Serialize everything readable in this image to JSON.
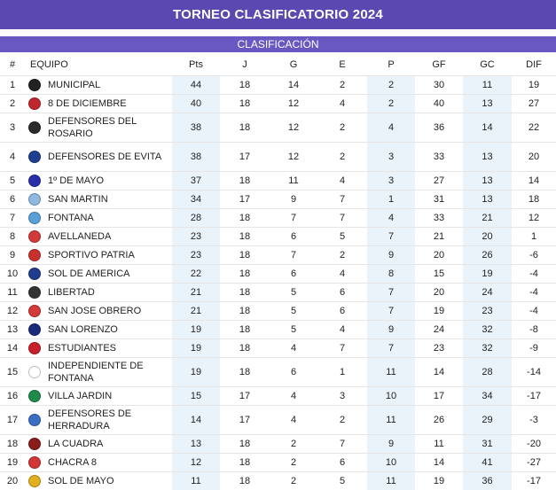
{
  "header": {
    "title": "TORNEO CLASIFICATORIO 2024",
    "subtitle": "CLASIFICACIÓN"
  },
  "columns": [
    "#",
    "EQUIPO",
    "Pts",
    "J",
    "G",
    "E",
    "P",
    "GF",
    "GC",
    "DIF"
  ],
  "rows": [
    {
      "pos": "1",
      "team": "MUNICIPAL",
      "pts": "44",
      "j": "18",
      "g": "14",
      "e": "2",
      "p": "2",
      "gf": "30",
      "gc": "11",
      "dif": "19",
      "badge": "#222222"
    },
    {
      "pos": "2",
      "team": "8 DE DICIEMBRE",
      "pts": "40",
      "j": "18",
      "g": "12",
      "e": "4",
      "p": "2",
      "gf": "40",
      "gc": "13",
      "dif": "27",
      "badge": "#c0262d"
    },
    {
      "pos": "3",
      "team": "DEFENSORES DEL ROSARIO",
      "pts": "38",
      "j": "18",
      "g": "12",
      "e": "2",
      "p": "4",
      "gf": "36",
      "gc": "14",
      "dif": "22",
      "badge": "#2b2b2b"
    },
    {
      "pos": "4",
      "team": "DEFENSORES DE EVITA",
      "pts": "38",
      "j": "17",
      "g": "12",
      "e": "2",
      "p": "3",
      "gf": "33",
      "gc": "13",
      "dif": "20",
      "badge": "#1e3f8f"
    },
    {
      "pos": "5",
      "team": "1º DE MAYO",
      "pts": "37",
      "j": "18",
      "g": "11",
      "e": "4",
      "p": "3",
      "gf": "27",
      "gc": "13",
      "dif": "14",
      "badge": "#2a2fa8"
    },
    {
      "pos": "6",
      "team": "SAN MARTIN",
      "pts": "34",
      "j": "17",
      "g": "9",
      "e": "7",
      "p": "1",
      "gf": "31",
      "gc": "13",
      "dif": "18",
      "badge": "#8fb9e0"
    },
    {
      "pos": "7",
      "team": "FONTANA",
      "pts": "28",
      "j": "18",
      "g": "7",
      "e": "7",
      "p": "4",
      "gf": "33",
      "gc": "21",
      "dif": "12",
      "badge": "#5aa0d8"
    },
    {
      "pos": "8",
      "team": "AVELLANEDA",
      "pts": "23",
      "j": "18",
      "g": "6",
      "e": "5",
      "p": "7",
      "gf": "21",
      "gc": "20",
      "dif": "1",
      "badge": "#d23a3a"
    },
    {
      "pos": "9",
      "team": "SPORTIVO PATRIA",
      "pts": "23",
      "j": "18",
      "g": "7",
      "e": "2",
      "p": "9",
      "gf": "20",
      "gc": "26",
      "dif": "-6",
      "badge": "#c8302f"
    },
    {
      "pos": "10",
      "team": "SOL DE AMERICA",
      "pts": "22",
      "j": "18",
      "g": "6",
      "e": "4",
      "p": "8",
      "gf": "15",
      "gc": "19",
      "dif": "-4",
      "badge": "#1f3d8c"
    },
    {
      "pos": "11",
      "team": "LIBERTAD",
      "pts": "21",
      "j": "18",
      "g": "5",
      "e": "6",
      "p": "7",
      "gf": "20",
      "gc": "24",
      "dif": "-4",
      "badge": "#333333"
    },
    {
      "pos": "12",
      "team": "SAN JOSE OBRERO",
      "pts": "21",
      "j": "18",
      "g": "5",
      "e": "6",
      "p": "7",
      "gf": "19",
      "gc": "23",
      "dif": "-4",
      "badge": "#d43a3a"
    },
    {
      "pos": "13",
      "team": "SAN LORENZO",
      "pts": "19",
      "j": "18",
      "g": "5",
      "e": "4",
      "p": "9",
      "gf": "24",
      "gc": "32",
      "dif": "-8",
      "badge": "#1c2a7a"
    },
    {
      "pos": "14",
      "team": "ESTUDIANTES",
      "pts": "19",
      "j": "18",
      "g": "4",
      "e": "7",
      "p": "7",
      "gf": "23",
      "gc": "32",
      "dif": "-9",
      "badge": "#c8202a"
    },
    {
      "pos": "15",
      "team": "INDEPENDIENTE DE FONTANA",
      "pts": "19",
      "j": "18",
      "g": "6",
      "e": "1",
      "p": "11",
      "gf": "14",
      "gc": "28",
      "dif": "-14",
      "badge": "#ffffff"
    },
    {
      "pos": "16",
      "team": "VILLA JARDIN",
      "pts": "15",
      "j": "17",
      "g": "4",
      "e": "3",
      "p": "10",
      "gf": "17",
      "gc": "34",
      "dif": "-17",
      "badge": "#1f8a4a"
    },
    {
      "pos": "17",
      "team": "DEFENSORES DE HERRADURA",
      "pts": "14",
      "j": "17",
      "g": "4",
      "e": "2",
      "p": "11",
      "gf": "26",
      "gc": "29",
      "dif": "-3",
      "badge": "#3a6fc4"
    },
    {
      "pos": "18",
      "team": "LA CUADRA",
      "pts": "13",
      "j": "18",
      "g": "2",
      "e": "7",
      "p": "9",
      "gf": "11",
      "gc": "31",
      "dif": "-20",
      "badge": "#8a1c1c"
    },
    {
      "pos": "19",
      "team": "CHACRA 8",
      "pts": "12",
      "j": "18",
      "g": "2",
      "e": "6",
      "p": "10",
      "gf": "14",
      "gc": "41",
      "dif": "-27",
      "badge": "#d23636"
    },
    {
      "pos": "20",
      "team": "SOL DE MAYO",
      "pts": "11",
      "j": "18",
      "g": "2",
      "e": "5",
      "p": "11",
      "gf": "19",
      "gc": "36",
      "dif": "-17",
      "badge": "#e0b020"
    }
  ]
}
